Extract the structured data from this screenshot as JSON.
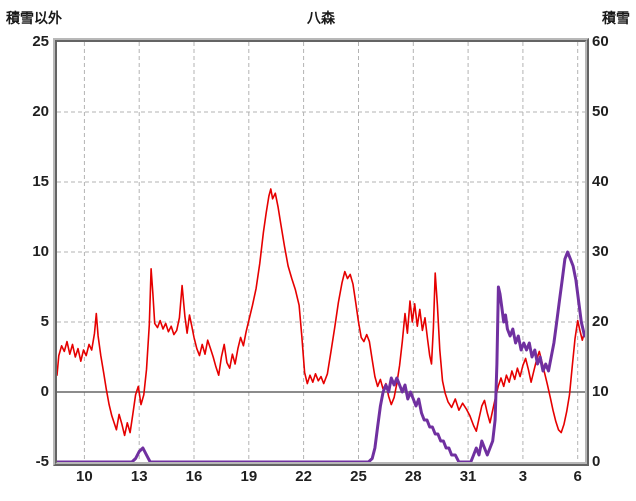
{
  "chart_data": {
    "type": "line",
    "title": "八森",
    "left_axis": {
      "label": "積雪以外",
      "min": -5,
      "max": 25,
      "ticks": [
        25,
        20,
        15,
        10,
        5,
        0,
        -5
      ]
    },
    "right_axis": {
      "label": "積雪",
      "min": 0,
      "max": 60,
      "ticks": [
        60,
        50,
        40,
        30,
        20,
        10,
        0
      ]
    },
    "x_axis": {
      "min": 8.5,
      "max": 37.4,
      "ticks": [
        {
          "v": 10,
          "label": "10"
        },
        {
          "v": 13,
          "label": "13"
        },
        {
          "v": 16,
          "label": "16"
        },
        {
          "v": 19,
          "label": "19"
        },
        {
          "v": 22,
          "label": "22"
        },
        {
          "v": 25,
          "label": "25"
        },
        {
          "v": 28,
          "label": "28"
        },
        {
          "v": 31,
          "label": "31"
        },
        {
          "v": 34,
          "label": "3"
        },
        {
          "v": 37,
          "label": "6"
        }
      ]
    },
    "zero_line_value": 0,
    "grid": {
      "color": "#b3b3b3",
      "dash": "4 3",
      "zero_line_color": "#666666"
    },
    "series": [
      {
        "name": "積雪以外",
        "axis": "left",
        "color": "#e60000",
        "width": 1.6,
        "points": [
          [
            8.5,
            1.2
          ],
          [
            8.6,
            2.6
          ],
          [
            8.75,
            3.3
          ],
          [
            8.9,
            2.9
          ],
          [
            9.05,
            3.6
          ],
          [
            9.2,
            2.7
          ],
          [
            9.35,
            3.4
          ],
          [
            9.5,
            2.5
          ],
          [
            9.65,
            3.1
          ],
          [
            9.8,
            2.2
          ],
          [
            9.95,
            3.0
          ],
          [
            10.1,
            2.6
          ],
          [
            10.25,
            3.4
          ],
          [
            10.4,
            3.0
          ],
          [
            10.55,
            4.2
          ],
          [
            10.65,
            5.6
          ],
          [
            10.75,
            4.0
          ],
          [
            10.9,
            2.6
          ],
          [
            11.05,
            1.4
          ],
          [
            11.2,
            0.2
          ],
          [
            11.35,
            -0.9
          ],
          [
            11.5,
            -1.7
          ],
          [
            11.65,
            -2.3
          ],
          [
            11.75,
            -2.7
          ],
          [
            11.9,
            -1.6
          ],
          [
            12.05,
            -2.3
          ],
          [
            12.2,
            -3.1
          ],
          [
            12.35,
            -2.2
          ],
          [
            12.5,
            -2.9
          ],
          [
            12.65,
            -1.6
          ],
          [
            12.8,
            -0.2
          ],
          [
            12.95,
            0.4
          ],
          [
            13.1,
            -0.9
          ],
          [
            13.25,
            -0.2
          ],
          [
            13.4,
            1.6
          ],
          [
            13.55,
            4.8
          ],
          [
            13.65,
            8.8
          ],
          [
            13.75,
            7.0
          ],
          [
            13.85,
            4.9
          ],
          [
            14.0,
            4.6
          ],
          [
            14.15,
            5.1
          ],
          [
            14.3,
            4.5
          ],
          [
            14.45,
            4.9
          ],
          [
            14.6,
            4.3
          ],
          [
            14.75,
            4.7
          ],
          [
            14.9,
            4.1
          ],
          [
            15.05,
            4.4
          ],
          [
            15.2,
            5.3
          ],
          [
            15.35,
            7.6
          ],
          [
            15.5,
            5.4
          ],
          [
            15.62,
            4.2
          ],
          [
            15.75,
            5.5
          ],
          [
            15.88,
            4.7
          ],
          [
            16.0,
            3.9
          ],
          [
            16.15,
            3.1
          ],
          [
            16.3,
            2.6
          ],
          [
            16.45,
            3.4
          ],
          [
            16.6,
            2.7
          ],
          [
            16.75,
            3.7
          ],
          [
            16.9,
            3.1
          ],
          [
            17.05,
            2.5
          ],
          [
            17.2,
            1.8
          ],
          [
            17.35,
            1.2
          ],
          [
            17.5,
            2.5
          ],
          [
            17.65,
            3.4
          ],
          [
            17.8,
            2.1
          ],
          [
            17.95,
            1.7
          ],
          [
            18.1,
            2.7
          ],
          [
            18.25,
            2.0
          ],
          [
            18.4,
            3.1
          ],
          [
            18.55,
            3.9
          ],
          [
            18.7,
            3.3
          ],
          [
            18.85,
            4.3
          ],
          [
            19.0,
            5.1
          ],
          [
            19.2,
            6.2
          ],
          [
            19.4,
            7.4
          ],
          [
            19.6,
            9.2
          ],
          [
            19.8,
            11.4
          ],
          [
            19.95,
            12.8
          ],
          [
            20.1,
            14.0
          ],
          [
            20.2,
            14.5
          ],
          [
            20.3,
            13.8
          ],
          [
            20.45,
            14.2
          ],
          [
            20.6,
            13.2
          ],
          [
            20.75,
            12.0
          ],
          [
            20.95,
            10.4
          ],
          [
            21.15,
            9.0
          ],
          [
            21.35,
            8.1
          ],
          [
            21.55,
            7.3
          ],
          [
            21.75,
            6.2
          ],
          [
            21.9,
            4.0
          ],
          [
            22.05,
            1.4
          ],
          [
            22.2,
            0.6
          ],
          [
            22.35,
            1.2
          ],
          [
            22.5,
            0.7
          ],
          [
            22.65,
            1.3
          ],
          [
            22.8,
            0.8
          ],
          [
            22.95,
            1.1
          ],
          [
            23.1,
            0.6
          ],
          [
            23.3,
            1.3
          ],
          [
            23.5,
            2.9
          ],
          [
            23.7,
            4.6
          ],
          [
            23.9,
            6.4
          ],
          [
            24.1,
            7.8
          ],
          [
            24.25,
            8.6
          ],
          [
            24.4,
            8.1
          ],
          [
            24.55,
            8.4
          ],
          [
            24.7,
            7.7
          ],
          [
            24.85,
            6.4
          ],
          [
            25.0,
            5.0
          ],
          [
            25.15,
            3.9
          ],
          [
            25.3,
            3.6
          ],
          [
            25.45,
            4.1
          ],
          [
            25.6,
            3.6
          ],
          [
            25.75,
            2.3
          ],
          [
            25.9,
            1.1
          ],
          [
            26.05,
            0.4
          ],
          [
            26.2,
            0.9
          ],
          [
            26.35,
            0.2
          ],
          [
            26.5,
            0.6
          ],
          [
            26.65,
            -0.3
          ],
          [
            26.8,
            -0.9
          ],
          [
            26.95,
            -0.4
          ],
          [
            27.1,
            0.6
          ],
          [
            27.25,
            1.9
          ],
          [
            27.4,
            3.6
          ],
          [
            27.55,
            5.6
          ],
          [
            27.68,
            4.2
          ],
          [
            27.82,
            6.5
          ],
          [
            27.95,
            5.0
          ],
          [
            28.08,
            6.3
          ],
          [
            28.22,
            4.7
          ],
          [
            28.36,
            5.9
          ],
          [
            28.5,
            4.4
          ],
          [
            28.64,
            5.3
          ],
          [
            28.78,
            3.8
          ],
          [
            28.9,
            2.6
          ],
          [
            29.0,
            2.0
          ],
          [
            29.1,
            4.6
          ],
          [
            29.2,
            8.5
          ],
          [
            29.32,
            6.2
          ],
          [
            29.45,
            3.0
          ],
          [
            29.6,
            0.8
          ],
          [
            29.75,
            -0.1
          ],
          [
            29.9,
            -0.7
          ],
          [
            30.1,
            -1.1
          ],
          [
            30.3,
            -0.5
          ],
          [
            30.5,
            -1.3
          ],
          [
            30.7,
            -0.8
          ],
          [
            30.9,
            -1.2
          ],
          [
            31.1,
            -1.7
          ],
          [
            31.3,
            -2.4
          ],
          [
            31.45,
            -2.8
          ],
          [
            31.6,
            -1.9
          ],
          [
            31.75,
            -1.0
          ],
          [
            31.9,
            -0.6
          ],
          [
            32.05,
            -1.5
          ],
          [
            32.2,
            -2.2
          ],
          [
            32.35,
            -1.3
          ],
          [
            32.5,
            -0.4
          ],
          [
            32.65,
            0.4
          ],
          [
            32.8,
            1.0
          ],
          [
            32.95,
            0.4
          ],
          [
            33.1,
            1.2
          ],
          [
            33.25,
            0.7
          ],
          [
            33.4,
            1.5
          ],
          [
            33.55,
            0.9
          ],
          [
            33.7,
            1.7
          ],
          [
            33.85,
            1.1
          ],
          [
            34.0,
            1.9
          ],
          [
            34.15,
            2.4
          ],
          [
            34.3,
            1.6
          ],
          [
            34.45,
            0.7
          ],
          [
            34.6,
            1.5
          ],
          [
            34.75,
            2.3
          ],
          [
            34.9,
            2.9
          ],
          [
            35.05,
            2.1
          ],
          [
            35.2,
            1.3
          ],
          [
            35.35,
            0.5
          ],
          [
            35.5,
            -0.4
          ],
          [
            35.65,
            -1.3
          ],
          [
            35.8,
            -2.1
          ],
          [
            35.95,
            -2.7
          ],
          [
            36.1,
            -2.9
          ],
          [
            36.25,
            -2.3
          ],
          [
            36.4,
            -1.4
          ],
          [
            36.55,
            -0.2
          ],
          [
            36.7,
            1.8
          ],
          [
            36.85,
            3.8
          ],
          [
            37.0,
            5.1
          ],
          [
            37.12,
            4.4
          ],
          [
            37.25,
            3.7
          ],
          [
            37.38,
            4.3
          ]
        ]
      },
      {
        "name": "積雪",
        "axis": "right",
        "color": "#7030a0",
        "width": 3,
        "points": [
          [
            8.5,
            0
          ],
          [
            12.6,
            0
          ],
          [
            12.8,
            0.5
          ],
          [
            13.0,
            1.5
          ],
          [
            13.2,
            2.0
          ],
          [
            13.4,
            1.0
          ],
          [
            13.6,
            0
          ],
          [
            25.55,
            0
          ],
          [
            25.75,
            0.5
          ],
          [
            25.9,
            2
          ],
          [
            26.05,
            5
          ],
          [
            26.2,
            8
          ],
          [
            26.35,
            10
          ],
          [
            26.5,
            11
          ],
          [
            26.65,
            10
          ],
          [
            26.8,
            12
          ],
          [
            26.95,
            11
          ],
          [
            27.1,
            12
          ],
          [
            27.25,
            11
          ],
          [
            27.4,
            10
          ],
          [
            27.55,
            11
          ],
          [
            27.7,
            9
          ],
          [
            27.85,
            10
          ],
          [
            28.0,
            9
          ],
          [
            28.15,
            8
          ],
          [
            28.3,
            9
          ],
          [
            28.45,
            7
          ],
          [
            28.6,
            6
          ],
          [
            28.75,
            6
          ],
          [
            28.9,
            5
          ],
          [
            29.05,
            5
          ],
          [
            29.2,
            4
          ],
          [
            29.35,
            4
          ],
          [
            29.5,
            3
          ],
          [
            29.65,
            3
          ],
          [
            29.8,
            2
          ],
          [
            29.95,
            2
          ],
          [
            30.1,
            1
          ],
          [
            30.3,
            1
          ],
          [
            30.5,
            0
          ],
          [
            31.15,
            0
          ],
          [
            31.3,
            1
          ],
          [
            31.45,
            2
          ],
          [
            31.6,
            1
          ],
          [
            31.75,
            3
          ],
          [
            31.9,
            2
          ],
          [
            32.05,
            1
          ],
          [
            32.2,
            2
          ],
          [
            32.35,
            3
          ],
          [
            32.48,
            6
          ],
          [
            32.58,
            14
          ],
          [
            32.66,
            25
          ],
          [
            32.75,
            24
          ],
          [
            32.85,
            22
          ],
          [
            32.95,
            20
          ],
          [
            33.05,
            21
          ],
          [
            33.15,
            19
          ],
          [
            33.3,
            18
          ],
          [
            33.45,
            19
          ],
          [
            33.6,
            17
          ],
          [
            33.75,
            18
          ],
          [
            33.9,
            16
          ],
          [
            34.05,
            17
          ],
          [
            34.2,
            16
          ],
          [
            34.35,
            17
          ],
          [
            34.5,
            15
          ],
          [
            34.65,
            16
          ],
          [
            34.8,
            14
          ],
          [
            34.95,
            15
          ],
          [
            35.1,
            13
          ],
          [
            35.25,
            14
          ],
          [
            35.4,
            13
          ],
          [
            35.55,
            15
          ],
          [
            35.7,
            17
          ],
          [
            35.85,
            20
          ],
          [
            36.0,
            23
          ],
          [
            36.15,
            26
          ],
          [
            36.3,
            29
          ],
          [
            36.45,
            30
          ],
          [
            36.6,
            29
          ],
          [
            36.75,
            28
          ],
          [
            36.9,
            26
          ],
          [
            37.05,
            23
          ],
          [
            37.2,
            20
          ],
          [
            37.38,
            18
          ]
        ]
      }
    ]
  }
}
